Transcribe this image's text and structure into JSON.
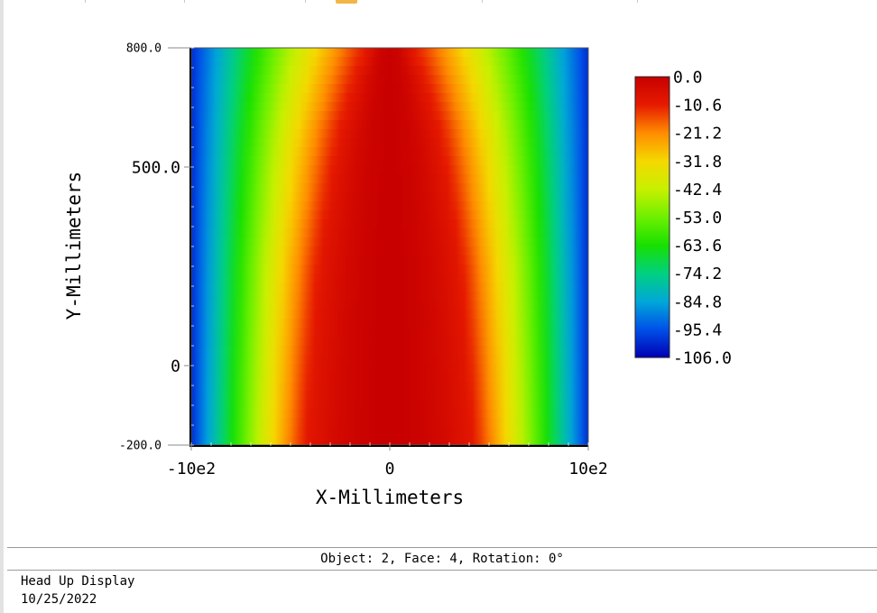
{
  "chart_data": {
    "type": "heatmap",
    "title": "",
    "xlabel": "X-Millimeters",
    "ylabel": "Y-Millimeters",
    "xlim": [
      -1000,
      1000
    ],
    "ylim": [
      -200,
      800
    ],
    "x_tick_labels": [
      {
        "value": -1000,
        "label": "-10e2"
      },
      {
        "value": 0,
        "label": "0"
      },
      {
        "value": 1000,
        "label": "10e2"
      }
    ],
    "y_tick_labels": [
      {
        "value": 800,
        "label": "800.0"
      },
      {
        "value": 500,
        "label": "500.0"
      },
      {
        "value": 0,
        "label": "0"
      },
      {
        "value": -200,
        "label": "-200.0"
      }
    ],
    "colorbar": {
      "min": -106.0,
      "max": 0.0,
      "labels": [
        "0.0",
        "-10.6",
        "-21.2",
        "-31.8",
        "-42.4",
        "-53.0",
        "-63.6",
        "-74.2",
        "-84.8",
        "-95.4",
        "-106.0"
      ],
      "colors": [
        "#c80000",
        "#e61a00",
        "#ff8c00",
        "#f5d800",
        "#c8f000",
        "#6ef000",
        "#18e000",
        "#00d080",
        "#00a8d8",
        "#0050e8",
        "#0000b4"
      ]
    },
    "field_profile": {
      "y_values": [
        -200,
        0,
        250,
        500,
        600,
        700,
        800
      ],
      "center_half_width_mm": [
        410,
        385,
        345,
        270,
        230,
        170,
        100
      ],
      "edge_value_at_x_1000": -100,
      "peak_value": 0
    }
  },
  "status": {
    "text": "Object: 2, Face: 4, Rotation: 0°"
  },
  "info": {
    "line1": "Head Up Display",
    "line2": "10/25/2022"
  }
}
